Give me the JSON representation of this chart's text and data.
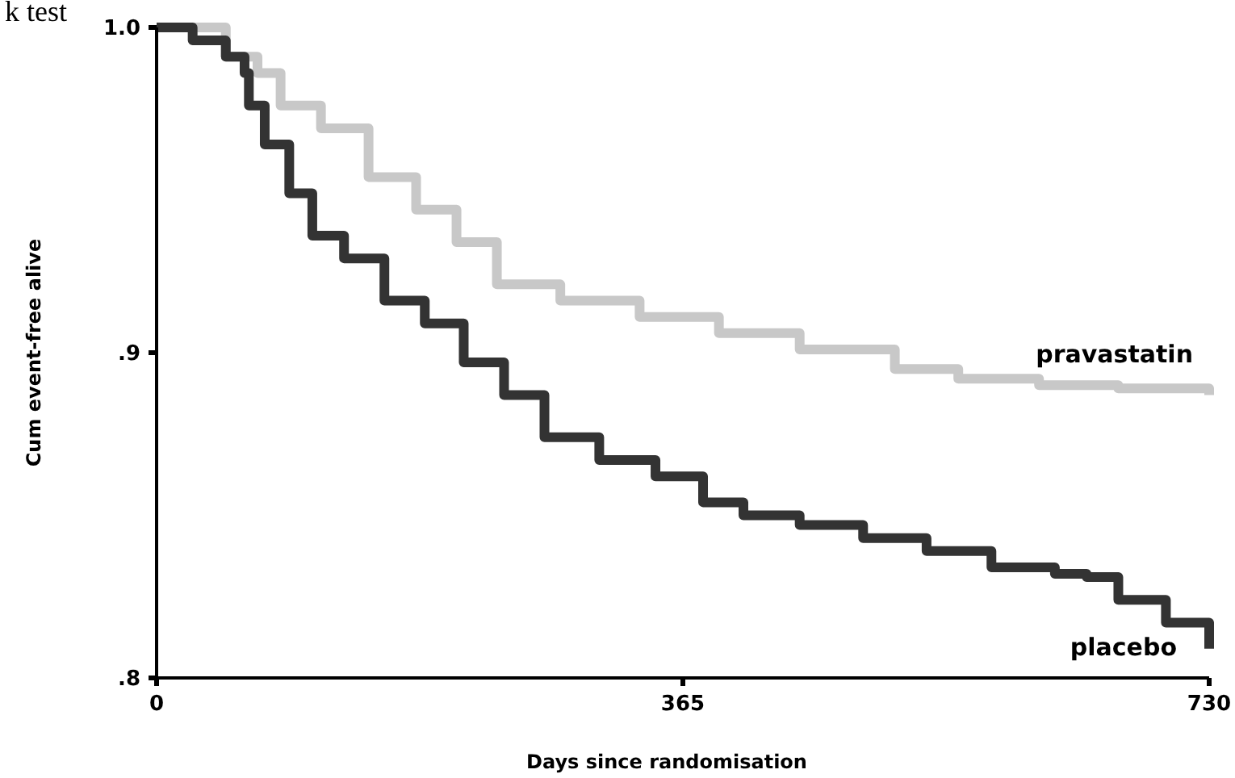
{
  "chart_data": {
    "type": "step",
    "xlabel": "Days since randomisation",
    "ylabel": "Cum event-free alive",
    "annotations": [
      "k test"
    ],
    "xlim": [
      0,
      730
    ],
    "ylim": [
      0.8,
      1.0
    ],
    "xticks": [
      0,
      365,
      730
    ],
    "yticks": [
      {
        "value": 1.0,
        "label": "1.0"
      },
      {
        "value": 0.9,
        "label": ".9"
      },
      {
        "value": 0.8,
        "label": ".8"
      }
    ],
    "grid": false,
    "marker": "none",
    "line_style": "solid",
    "series": [
      {
        "name": "pravastatin",
        "color": "#c8c8c8",
        "x": [
          0,
          48,
          70,
          86,
          114,
          147,
          180,
          208,
          236,
          280,
          335,
          390,
          446,
          512,
          556,
          612,
          667,
          730
        ],
        "values": [
          1.0,
          0.991,
          0.986,
          0.976,
          0.969,
          0.954,
          0.944,
          0.934,
          0.921,
          0.916,
          0.911,
          0.906,
          0.901,
          0.895,
          0.892,
          0.89,
          0.889,
          0.887
        ]
      },
      {
        "name": "placebo",
        "color": "#333333",
        "x": [
          0,
          25,
          48,
          61,
          64,
          75,
          92,
          108,
          130,
          158,
          186,
          213,
          241,
          269,
          307,
          346,
          379,
          407,
          446,
          490,
          534,
          579,
          623,
          645,
          667,
          700,
          730
        ],
        "values": [
          1.0,
          0.996,
          0.991,
          0.986,
          0.976,
          0.964,
          0.949,
          0.936,
          0.929,
          0.916,
          0.909,
          0.897,
          0.887,
          0.874,
          0.867,
          0.862,
          0.854,
          0.85,
          0.847,
          0.843,
          0.839,
          0.834,
          0.832,
          0.831,
          0.824,
          0.817,
          0.809
        ]
      }
    ]
  }
}
